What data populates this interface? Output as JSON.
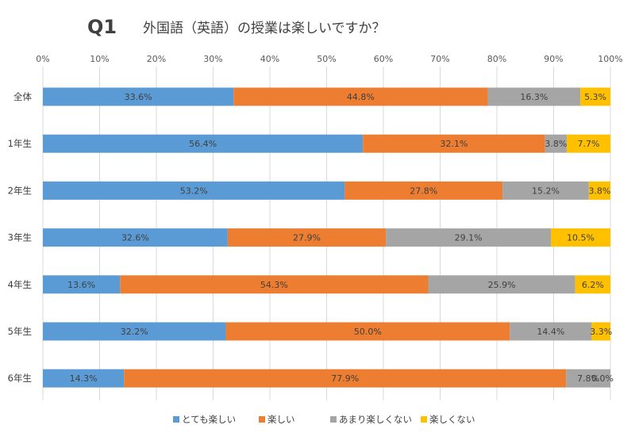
{
  "chart_data": {
    "type": "bar",
    "orientation": "horizontal",
    "stacked": "percent",
    "question_label": "Q1",
    "title": "外国語（英語）の授業は楽しいですか？",
    "xlim": [
      0,
      100
    ],
    "x_ticks": [
      "0%",
      "10%",
      "20%",
      "30%",
      "40%",
      "50%",
      "60%",
      "70%",
      "80%",
      "90%",
      "100%"
    ],
    "grid": true,
    "legend_position": "bottom",
    "categories": [
      "全体",
      "1年生",
      "2年生",
      "3年生",
      "4年生",
      "5年生",
      "6年生"
    ],
    "series": [
      {
        "name": "とても楽しい",
        "color": "#5b9bd5",
        "values": [
          33.6,
          56.4,
          53.2,
          32.6,
          13.6,
          32.2,
          14.3
        ],
        "labels": [
          "33.6%",
          "56.4%",
          "53.2%",
          "32.6%",
          "13.6%",
          "32.2%",
          "14.3%"
        ]
      },
      {
        "name": "楽しい",
        "color": "#ed7d31",
        "values": [
          44.8,
          32.1,
          27.8,
          27.9,
          54.3,
          50.0,
          77.9
        ],
        "labels": [
          "44.8%",
          "32.1%",
          "27.8%",
          "27.9%",
          "54.3%",
          "50.0%",
          "77.9%"
        ]
      },
      {
        "name": "あまり楽しくない",
        "color": "#a5a5a5",
        "values": [
          16.3,
          3.8,
          15.2,
          29.1,
          25.9,
          14.4,
          7.8
        ],
        "labels": [
          "16.3%",
          "3.8%",
          "15.2%",
          "29.1%",
          "25.9%",
          "14.4%",
          "7.8%"
        ]
      },
      {
        "name": "楽しくない",
        "color": "#ffc000",
        "values": [
          5.3,
          7.7,
          3.8,
          10.5,
          6.2,
          3.3,
          0.0
        ],
        "labels": [
          "5.3%",
          "7.7%",
          "3.8%",
          "10.5%",
          "6.2%",
          "3.3%",
          "0.0%"
        ]
      }
    ]
  }
}
